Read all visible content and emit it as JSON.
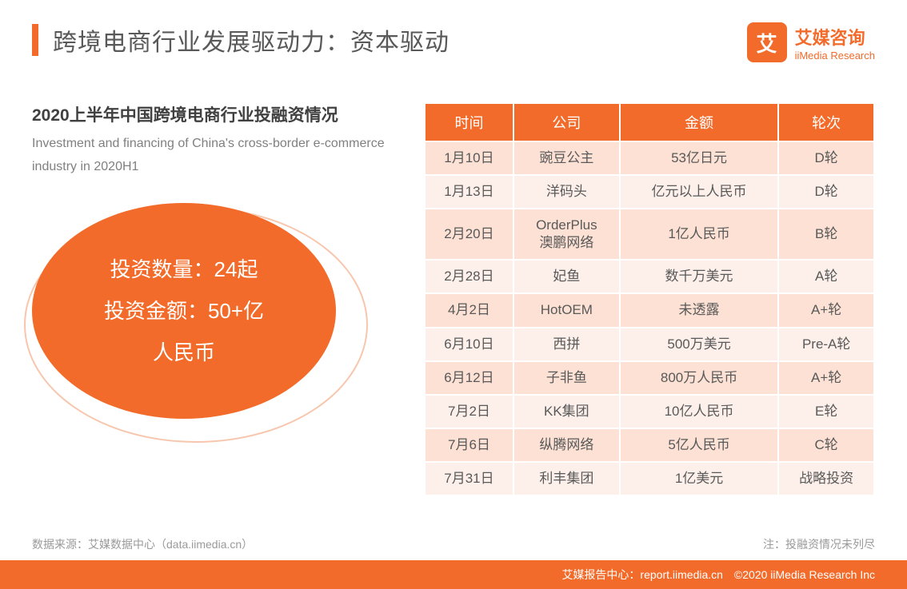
{
  "title": "跨境电商行业发展驱动力：资本驱动",
  "logo": {
    "cn": "艾媒咨询",
    "en": "iiMedia Research",
    "mark": "艾"
  },
  "subtitle": {
    "cn": "2020上半年中国跨境电商行业投融资情况",
    "en": "Investment and financing of China's cross-border e-commerce industry in 2020H1"
  },
  "ellipse": {
    "line1": "投资数量：24起",
    "line2": "投资金额：50+亿",
    "line3": "人民币",
    "fill": "#f26b2a",
    "outline": "#f7c6ad",
    "font_size": 26,
    "text_color": "#ffffff"
  },
  "table": {
    "header_bg": "#f26b2a",
    "header_color": "#ffffff",
    "row_odd_bg": "#fce1d4",
    "row_even_bg": "#fdf0ea",
    "text_color": "#595959",
    "columns": [
      "时间",
      "公司",
      "金额",
      "轮次"
    ],
    "rows": [
      [
        "1月10日",
        "豌豆公主",
        "53亿日元",
        "D轮"
      ],
      [
        "1月13日",
        "洋码头",
        "亿元以上人民币",
        "D轮"
      ],
      [
        "2月20日",
        "OrderPlus\n澳鹏网络",
        "1亿人民币",
        "B轮"
      ],
      [
        "2月28日",
        "妃鱼",
        "数千万美元",
        "A轮"
      ],
      [
        "4月2日",
        "HotOEM",
        "未透露",
        "A+轮"
      ],
      [
        "6月10日",
        "西拼",
        "500万美元",
        "Pre-A轮"
      ],
      [
        "6月12日",
        "子非鱼",
        "800万人民币",
        "A+轮"
      ],
      [
        "7月2日",
        "KK集团",
        "10亿人民币",
        "E轮"
      ],
      [
        "7月6日",
        "纵腾网络",
        "5亿人民币",
        "C轮"
      ],
      [
        "7月31日",
        "利丰集团",
        "1亿美元",
        "战略投资"
      ]
    ]
  },
  "footer": {
    "source": "数据来源：艾媒数据中心（data.iimedia.cn）",
    "note": "注：投融资情况未列尽",
    "bar": "艾媒报告中心：report.iimedia.cn　©2020  iiMedia Research Inc"
  },
  "colors": {
    "accent": "#f26b2a",
    "title_text": "#595959",
    "subtitle_text": "#404040",
    "muted_text": "#808080",
    "footer_text": "#9a9a9a",
    "background": "#ffffff"
  },
  "typography": {
    "title_fontsize": 30,
    "subtitle_cn_fontsize": 21,
    "subtitle_en_fontsize": 16,
    "table_header_fontsize": 18,
    "table_cell_fontsize": 17,
    "footer_fontsize": 14
  }
}
